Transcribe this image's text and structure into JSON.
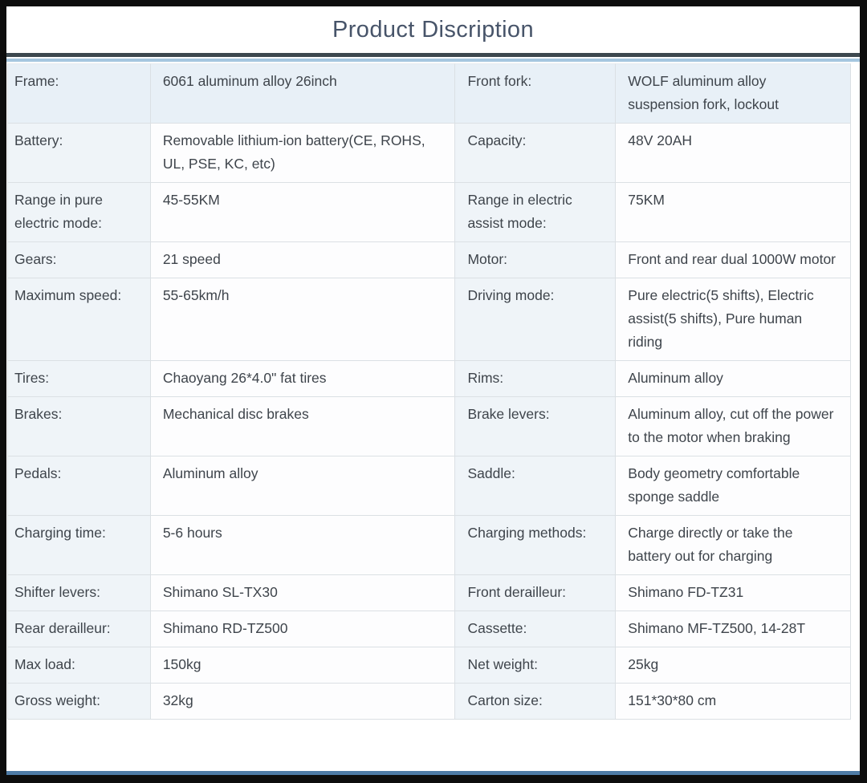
{
  "header": {
    "title": "Product Discription"
  },
  "colors": {
    "frame": "#0d0d0d",
    "dark_rule": "#3d484f",
    "top_rule": "#a6c7e0",
    "bottom_rule": "#4e7ba6",
    "first_row_bg": "#e8f0f7",
    "label_cell_bg": "#eff4f8",
    "text": "#3e444b",
    "title": "#475469"
  },
  "table": {
    "rows": [
      [
        "Frame:",
        "6061 aluminum alloy 26inch",
        "Front fork:",
        "WOLF aluminum alloy suspension fork, lockout"
      ],
      [
        "Battery:",
        "Removable lithium-ion battery(CE, ROHS, UL, PSE, KC, etc)",
        "Capacity:",
        "48V 20AH"
      ],
      [
        "Range in pure electric mode:",
        "45-55KM",
        "Range in electric assist mode:",
        "75KM"
      ],
      [
        "Gears:",
        "21 speed",
        "Motor:",
        "Front and rear dual 1000W motor"
      ],
      [
        "Maximum speed:",
        "55-65km/h",
        "Driving mode:",
        "Pure electric(5 shifts), Electric assist(5 shifts), Pure human riding"
      ],
      [
        "Tires:",
        "Chaoyang 26*4.0\" fat tires",
        "Rims:",
        "Aluminum alloy"
      ],
      [
        "Brakes:",
        "Mechanical disc brakes",
        "Brake levers:",
        "Aluminum alloy, cut off the power to the motor when braking"
      ],
      [
        "Pedals:",
        "Aluminum alloy",
        "Saddle:",
        "Body geometry comfortable sponge saddle"
      ],
      [
        "Charging time:",
        "5-6 hours",
        "Charging methods:",
        "Charge directly or take the battery out for charging"
      ],
      [
        "Shifter levers:",
        "Shimano SL-TX30",
        "Front derailleur:",
        "Shimano FD-TZ31"
      ],
      [
        "Rear derailleur:",
        "Shimano RD-TZ500",
        "Cassette:",
        "Shimano MF-TZ500, 14-28T"
      ],
      [
        "Max load:",
        "150kg",
        "Net weight:",
        "25kg"
      ],
      [
        "Gross weight:",
        "32kg",
        "Carton size:",
        "151*30*80 cm"
      ]
    ]
  }
}
